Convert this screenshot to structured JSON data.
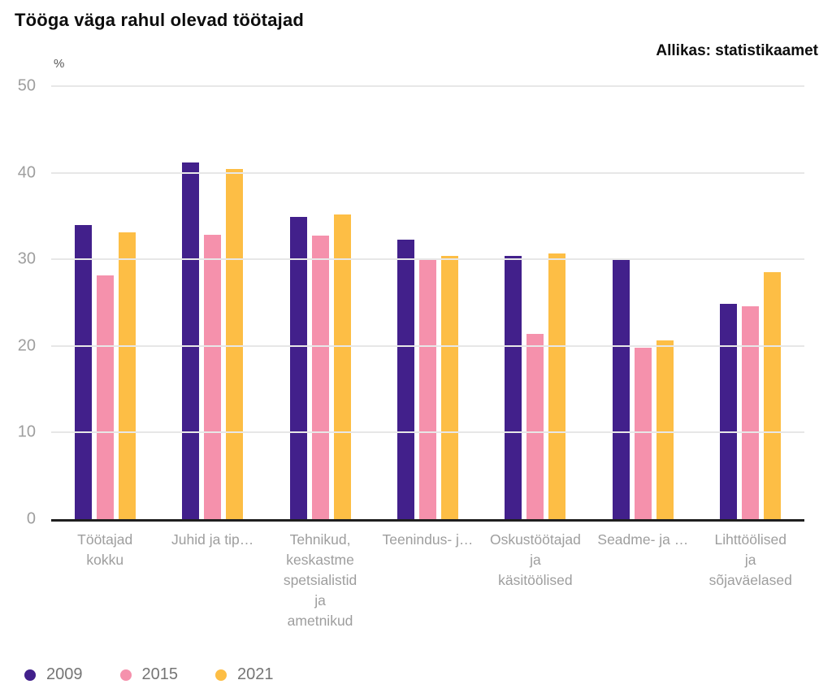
{
  "header": {
    "source": "Allikas: statistikaamet"
  },
  "chart_data": {
    "type": "bar",
    "title": "Tööga väga rahul olevad töötajad",
    "xlabel": "",
    "ylabel": "%",
    "ylim": [
      0,
      50
    ],
    "y_ticks": [
      0,
      10,
      20,
      30,
      40,
      50
    ],
    "grid": true,
    "legend_position": "bottom-left",
    "axis_color": "#1f1f1f",
    "gridline_color": "#e7e7e7",
    "tick_label_color": "#9e9e9e",
    "categories": [
      "Töötajad kokku",
      "Juhid ja tip…",
      "Tehnikud, keskastme spetsialistid ja ametnikud",
      "Teenindus- j…",
      "Oskustöötajad ja käsitöölised",
      "Seadme- ja …",
      "Lihttöölised ja sõjaväelased"
    ],
    "category_label_lines": [
      [
        "Töötajad",
        "kokku"
      ],
      [
        "Juhid ja tip…"
      ],
      [
        "Tehnikud,",
        "keskastme",
        "spetsialistid",
        "ja",
        "ametnikud"
      ],
      [
        "Teenindus- j…"
      ],
      [
        "Oskustöötajad",
        "ja",
        "käsitöölised"
      ],
      [
        "Seadme- ja …"
      ],
      [
        "Lihttöölised",
        "ja",
        "sõjaväelased"
      ]
    ],
    "series": [
      {
        "name": "2009",
        "color": "#42208b",
        "values": [
          34.0,
          41.2,
          34.9,
          32.3,
          30.4,
          30.1,
          24.9
        ]
      },
      {
        "name": "2015",
        "color": "#f591ac",
        "values": [
          28.1,
          32.8,
          32.7,
          30.1,
          21.4,
          19.8,
          24.6
        ]
      },
      {
        "name": "2021",
        "color": "#fdbe45",
        "values": [
          33.1,
          40.4,
          35.2,
          30.4,
          30.7,
          20.6,
          28.5
        ]
      }
    ]
  }
}
